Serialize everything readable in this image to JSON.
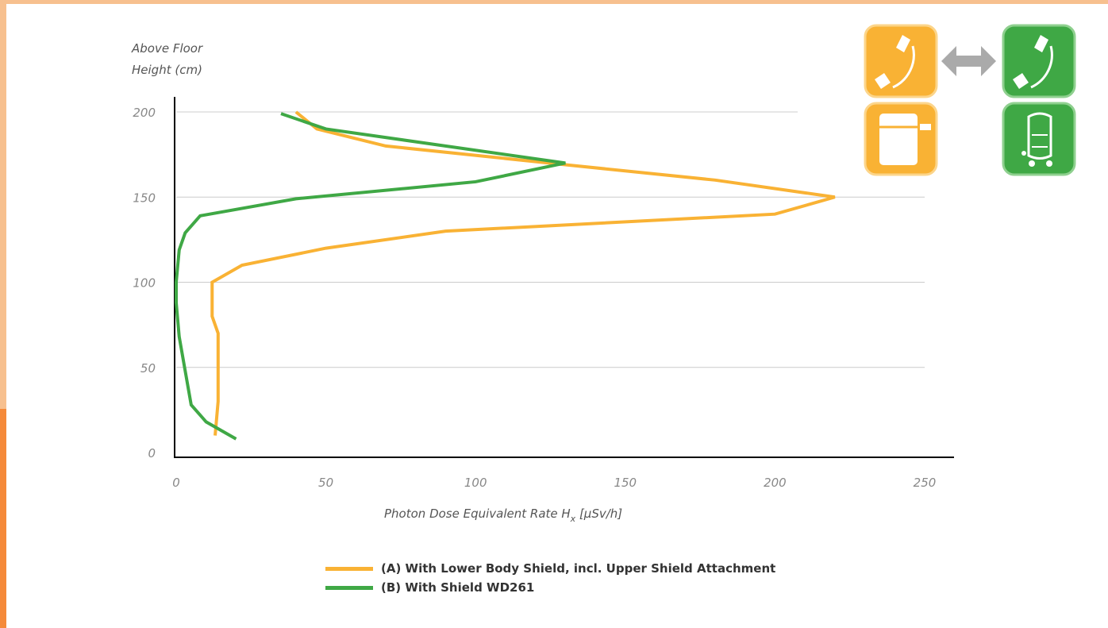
{
  "colors": {
    "series_a": "#f9b234",
    "series_b": "#3fa845",
    "frame": "#f7c08f",
    "frame_accent": "#f58a3a",
    "grid": "#cccccc",
    "axis": "#000000",
    "icon_arrow": "#aaaaaa"
  },
  "icons": [
    {
      "name": "c-arm-icon",
      "color": "orange"
    },
    {
      "name": "double-arrow-icon",
      "color": "gray"
    },
    {
      "name": "c-arm-icon",
      "color": "green"
    },
    {
      "name": "lower-body-shield-icon",
      "color": "orange"
    },
    {
      "name": "mobile-shield-icon",
      "color": "green"
    }
  ],
  "chart_data": {
    "type": "line",
    "title": "",
    "ylabel_line1": "Above Floor",
    "ylabel_line2": "Height (cm)",
    "xlabel_main": "Photon Dose Equivalent Rate H",
    "xlabel_sub": "x",
    "xlabel_unit": " [μSv/h]",
    "xlim": [
      0,
      250
    ],
    "ylim": [
      0,
      200
    ],
    "xticks": [
      0,
      50,
      100,
      150,
      200,
      250
    ],
    "yticks": [
      0,
      50,
      100,
      150,
      200
    ],
    "grid": "horizontal",
    "legend_position": "bottom",
    "series": [
      {
        "name": "(A) With Lower Body Shield, incl. Upper Shield Attachment",
        "points": [
          [
            40,
            200
          ],
          [
            47,
            190
          ],
          [
            70,
            180
          ],
          [
            130,
            169
          ],
          [
            180,
            160
          ],
          [
            220,
            150
          ],
          [
            200,
            140
          ],
          [
            90,
            130
          ],
          [
            50,
            120
          ],
          [
            22,
            110
          ],
          [
            12,
            100
          ],
          [
            12,
            80
          ],
          [
            14,
            70
          ],
          [
            14,
            50
          ],
          [
            14,
            30
          ],
          [
            13,
            10
          ]
        ]
      },
      {
        "name": "(B) With Shield WD261",
        "points": [
          [
            35,
            199
          ],
          [
            50,
            190
          ],
          [
            130,
            170
          ],
          [
            100,
            159
          ],
          [
            40,
            149
          ],
          [
            8,
            139
          ],
          [
            3,
            129
          ],
          [
            1,
            119
          ],
          [
            0,
            100
          ],
          [
            0,
            88
          ],
          [
            1,
            68
          ],
          [
            3,
            48
          ],
          [
            4,
            38
          ],
          [
            5,
            28
          ],
          [
            10,
            18
          ],
          [
            20,
            8
          ]
        ]
      }
    ]
  }
}
